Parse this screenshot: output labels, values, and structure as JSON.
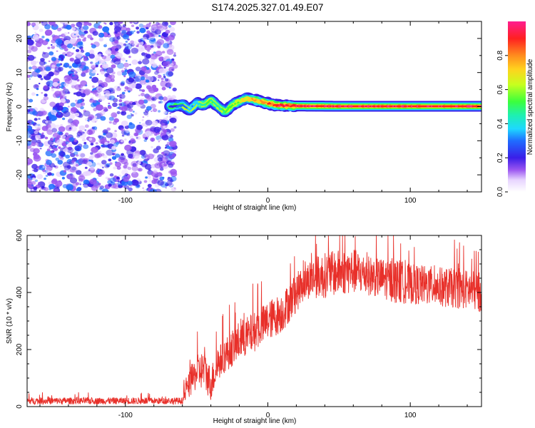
{
  "title": "S174.2025.327.01.49.E07",
  "colors": {
    "snr_line": "#e8302a",
    "axis": "#000000"
  },
  "chart_data": [
    {
      "type": "heatmap",
      "name": "spectrogram",
      "xlabel": "Height of straight line (km)",
      "ylabel": "Frequency (Hz)",
      "xlim": [
        -169,
        150
      ],
      "ylim": [
        -25,
        25
      ],
      "xticks": [
        -100,
        0,
        100
      ],
      "xtick_labels": [
        "-100",
        "0",
        "100"
      ],
      "yticks": [
        -20,
        -10,
        0,
        10,
        20
      ],
      "ytick_labels": [
        "-20",
        "-10",
        "0",
        "10",
        "20"
      ],
      "noise_region_x": [
        -169,
        -65
      ],
      "signal_trace": {
        "x": [
          -68,
          -60,
          -55,
          -50,
          -45,
          -40,
          -35,
          -30,
          -25,
          -20,
          -15,
          -10,
          -5,
          0,
          5,
          10,
          20,
          50,
          100,
          150
        ],
        "freq": [
          0,
          0.5,
          -1,
          1,
          0.5,
          2,
          0,
          -1.5,
          0.5,
          1.5,
          2.5,
          2,
          1.5,
          1,
          0.5,
          0.3,
          0.2,
          0.1,
          0.1,
          0.1
        ],
        "amplitude": [
          0.15,
          0.3,
          0.35,
          0.35,
          0.45,
          0.5,
          0.45,
          0.5,
          0.55,
          0.6,
          0.7,
          0.75,
          0.8,
          0.85,
          0.9,
          0.92,
          0.95,
          0.95,
          0.95,
          0.95
        ]
      }
    },
    {
      "type": "colorbar",
      "name": "amplitude-scale",
      "label": "Normalized spectral amplitude",
      "range": [
        0,
        1
      ],
      "ticks": [
        0.0,
        0.2,
        0.4,
        0.6,
        0.8
      ],
      "tick_labels": [
        "0.0",
        "0.2",
        "0.4",
        "0.6",
        "0.8"
      ]
    },
    {
      "type": "line",
      "name": "snr",
      "xlabel": "Height of straight line (km)",
      "ylabel": "SNR (10 * v/v)",
      "xlim": [
        -169,
        150
      ],
      "ylim": [
        0,
        600
      ],
      "xticks": [
        -100,
        0,
        100
      ],
      "xtick_labels": [
        "-100",
        "0",
        "100"
      ],
      "yticks": [
        0,
        200,
        400,
        600
      ],
      "ytick_labels": [
        "0",
        "200",
        "400",
        "600"
      ],
      "envelope": {
        "x": [
          -169,
          -60,
          -57,
          -50,
          -45,
          -40,
          -35,
          -30,
          -20,
          -10,
          0,
          10,
          20,
          25,
          30,
          40,
          50,
          60,
          70,
          80,
          90,
          100,
          120,
          140,
          150
        ],
        "mean": [
          20,
          20,
          60,
          120,
          130,
          80,
          150,
          180,
          230,
          260,
          300,
          330,
          400,
          430,
          450,
          460,
          470,
          475,
          460,
          450,
          440,
          430,
          420,
          410,
          400
        ],
        "spread": [
          12,
          12,
          40,
          60,
          70,
          60,
          60,
          60,
          70,
          70,
          70,
          70,
          70,
          60,
          70,
          80,
          80,
          80,
          70,
          70,
          80,
          70,
          70,
          70,
          70
        ]
      }
    }
  ]
}
